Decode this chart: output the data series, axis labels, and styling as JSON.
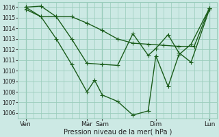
{
  "background_color": "#cce9e4",
  "grid_color": "#99ccbb",
  "line_color": "#1a5c1a",
  "xlabel": "Pression niveau de la mer( hPa )",
  "ylim": [
    1005.5,
    1016.5
  ],
  "yticks": [
    1006,
    1007,
    1008,
    1009,
    1010,
    1011,
    1012,
    1013,
    1014,
    1015,
    1016
  ],
  "xlim": [
    0,
    13.0
  ],
  "xtick_labels": [
    "Ven",
    "Mar",
    "Sam",
    "Dim",
    "Lun"
  ],
  "xtick_positions": [
    0.5,
    4.5,
    5.5,
    9.0,
    12.5
  ],
  "num_minor_x": 13,
  "line1_x": [
    0.5,
    1.5,
    2.5,
    3.5,
    4.5,
    5.5,
    6.5,
    7.5,
    8.5,
    9.0,
    9.8,
    10.5,
    11.3,
    12.5
  ],
  "line1_y": [
    1016.0,
    1016.1,
    1015.1,
    1013.0,
    1010.7,
    1010.6,
    1010.5,
    1013.5,
    1011.45,
    1012.1,
    1013.4,
    1011.7,
    1010.8,
    1015.8
  ],
  "line2_x": [
    0.5,
    1.5,
    2.5,
    3.5,
    4.5,
    5.0,
    5.5,
    6.5,
    7.5,
    8.5,
    9.0,
    9.8,
    10.5,
    11.3,
    12.5
  ],
  "line2_y": [
    1016.0,
    1015.1,
    1013.0,
    1010.6,
    1008.0,
    1009.1,
    1007.7,
    1007.1,
    1005.8,
    1006.2,
    1011.4,
    1008.5,
    1011.5,
    1012.5,
    1015.9
  ],
  "line3_x": [
    0.5,
    1.5,
    2.5,
    3.5,
    4.5,
    5.5,
    6.5,
    7.5,
    8.5,
    9.5,
    10.5,
    11.5,
    12.5
  ],
  "line3_y": [
    1015.8,
    1015.1,
    1015.1,
    1015.1,
    1014.5,
    1013.8,
    1013.0,
    1012.6,
    1012.5,
    1012.4,
    1012.3,
    1012.3,
    1015.9
  ]
}
